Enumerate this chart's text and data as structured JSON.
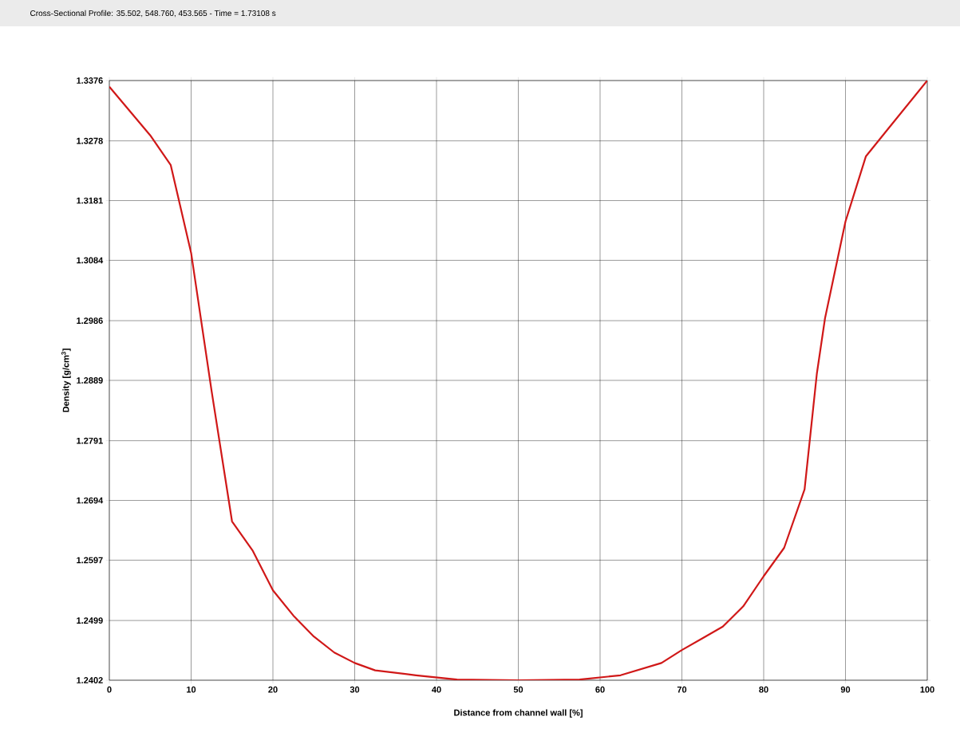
{
  "chart_data": {
    "type": "line",
    "title": "Cross-Sectional Profile: 35.502, 548.760, 453.565  -  Time = 1.73108 s",
    "xlabel": "Distance from channel wall [%]",
    "ylabel": "Density [g/cm$^{3}$]",
    "x": [
      0,
      5,
      7.5,
      10,
      12.5,
      15,
      17.5,
      20,
      22.5,
      25,
      27.5,
      30,
      32.5,
      37.5,
      42.5,
      50,
      57.5,
      62.5,
      67.5,
      70,
      72.5,
      75,
      77.5,
      80,
      82.5,
      85,
      86.5,
      87.5,
      90,
      92.5,
      95,
      100
    ],
    "series": [
      {
        "color": "#d01818",
        "values": [
          1.3366,
          1.3287,
          1.3239,
          1.3096,
          1.2872,
          1.266,
          1.2613,
          1.2548,
          1.2507,
          1.2473,
          1.2447,
          1.243,
          1.2418,
          1.241,
          1.2403,
          1.2402,
          1.2403,
          1.241,
          1.243,
          1.2451,
          1.247,
          1.2489,
          1.2522,
          1.2571,
          1.2617,
          1.2712,
          1.29,
          1.299,
          1.3147,
          1.3253,
          1.3294,
          1.3376
        ]
      }
    ],
    "xlim": [
      0,
      100
    ],
    "xticks": [
      0,
      10,
      20,
      30,
      40,
      50,
      60,
      70,
      80,
      90,
      100
    ],
    "ylim": [
      1.2402,
      1.3376
    ],
    "yticks": [
      1.2402,
      1.2499,
      1.2597,
      1.2694,
      1.2791,
      1.2889,
      1.2986,
      1.3084,
      1.3181,
      1.3278,
      1.3376
    ],
    "grid": true,
    "line_style": "solid",
    "marker": "none"
  }
}
